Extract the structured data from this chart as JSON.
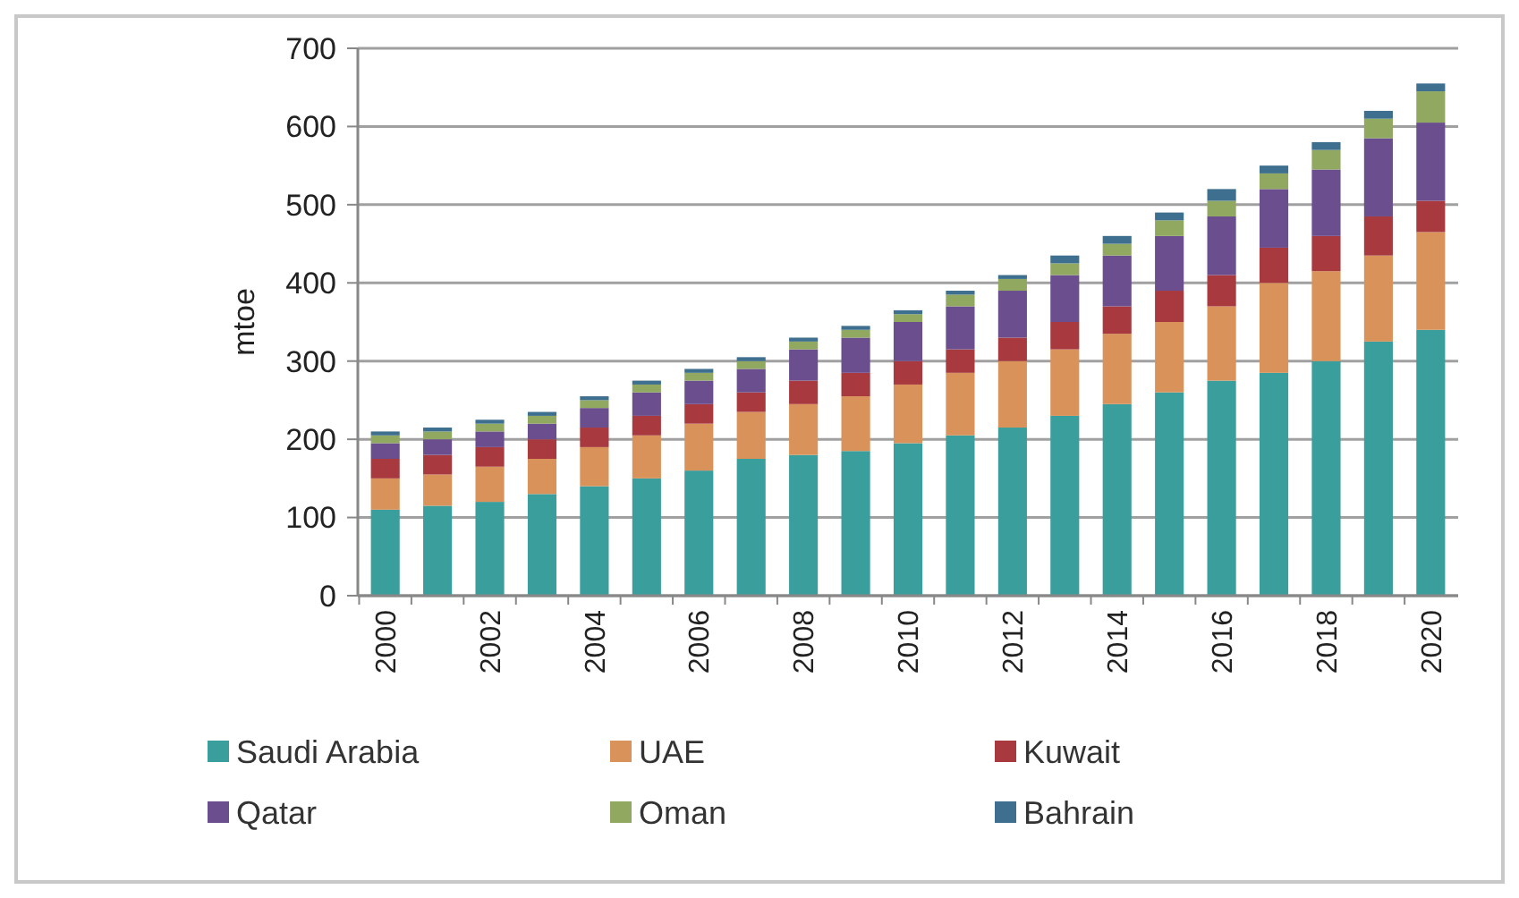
{
  "chart_data": {
    "type": "bar",
    "stacked": true,
    "ylabel": "mtoe",
    "categories": [
      "2000",
      null,
      "2002",
      null,
      "2004",
      null,
      "2006",
      null,
      "2008",
      null,
      "2010",
      null,
      "2012",
      null,
      "2014",
      null,
      "2016",
      null,
      "2018",
      null,
      "2020"
    ],
    "ylim": [
      0,
      700
    ],
    "yticks": [
      0,
      100,
      200,
      300,
      400,
      500,
      600,
      700
    ],
    "grid": "y",
    "legend": "bottom",
    "series": [
      {
        "name": "Saudi Arabia",
        "color": "#3a9e9c",
        "values": [
          110,
          115,
          120,
          130,
          140,
          150,
          160,
          175,
          180,
          185,
          195,
          205,
          215,
          230,
          245,
          260,
          275,
          285,
          300,
          325,
          340
        ]
      },
      {
        "name": "UAE",
        "color": "#d9935a",
        "values": [
          40,
          40,
          45,
          45,
          50,
          55,
          60,
          60,
          65,
          70,
          75,
          80,
          85,
          85,
          90,
          90,
          95,
          115,
          115,
          110,
          125
        ]
      },
      {
        "name": "Kuwait",
        "color": "#a83a3f",
        "values": [
          25,
          25,
          25,
          25,
          25,
          25,
          25,
          25,
          30,
          30,
          30,
          30,
          30,
          35,
          35,
          40,
          40,
          45,
          45,
          50,
          40
        ]
      },
      {
        "name": "Qatar",
        "color": "#6a4e8e",
        "values": [
          20,
          20,
          20,
          20,
          25,
          30,
          30,
          30,
          40,
          45,
          50,
          55,
          60,
          60,
          65,
          70,
          75,
          75,
          85,
          100,
          100
        ]
      },
      {
        "name": "Oman",
        "color": "#90a860",
        "values": [
          10,
          10,
          10,
          10,
          10,
          10,
          10,
          10,
          10,
          10,
          10,
          15,
          15,
          15,
          15,
          20,
          20,
          20,
          25,
          25,
          40
        ]
      },
      {
        "name": "Bahrain",
        "color": "#3e6f8e",
        "values": [
          5,
          5,
          5,
          5,
          5,
          5,
          5,
          5,
          5,
          5,
          5,
          5,
          5,
          10,
          10,
          10,
          15,
          10,
          10,
          10,
          10
        ]
      }
    ]
  }
}
